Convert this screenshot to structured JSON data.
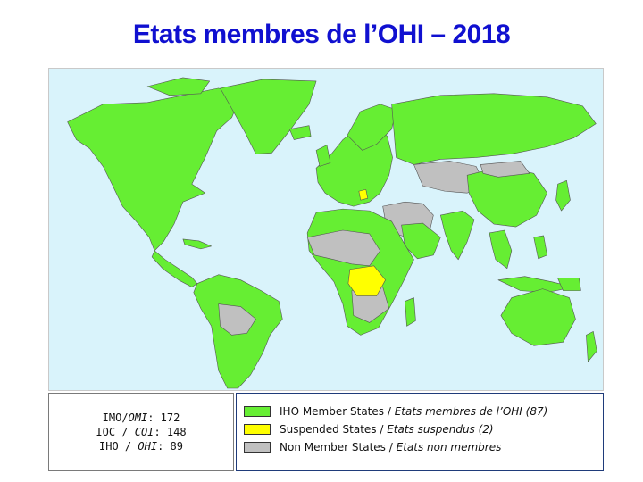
{
  "title": "Etats membres de l’OHI – 2018",
  "colors": {
    "member": "#66ee33",
    "suspended": "#ffff00",
    "non_member": "#c0c0c0",
    "ocean": "#d9f3fb",
    "title": "#1010d0"
  },
  "stats": [
    {
      "org": "IMO/",
      "org_fr": "OMI",
      "value": ": 172"
    },
    {
      "org": "IOC / ",
      "org_fr": "COI",
      "value": ": 148"
    },
    {
      "org": "IHO / ",
      "org_fr": "OHI",
      "value": ": 89"
    }
  ],
  "legend": [
    {
      "label_en": "IHO Member States / ",
      "label_fr": "Etats membres de l’OHI (87)",
      "color": "#66ee33"
    },
    {
      "label_en": "Suspended States / ",
      "label_fr": "Etats suspendus (2)",
      "color": "#ffff00"
    },
    {
      "label_en": "Non Member States / ",
      "label_fr": "Etats non membres",
      "color": "#c0c0c0"
    }
  ]
}
